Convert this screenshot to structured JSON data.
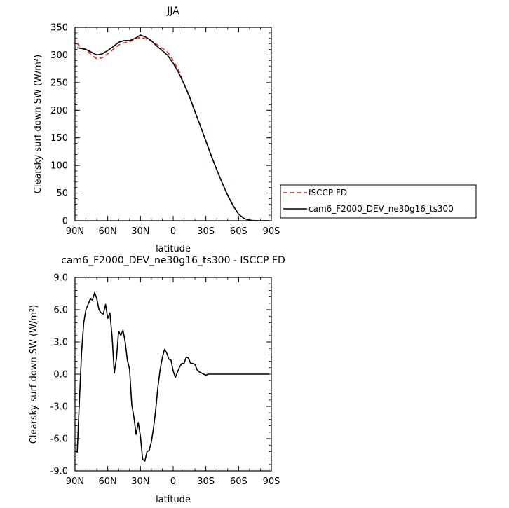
{
  "chart_data": [
    {
      "type": "line",
      "title": "JJA",
      "xlabel": "latitude",
      "ylabel": "Clearsky surf down SW (W/m²)",
      "xlim": [
        90,
        -90
      ],
      "ylim": [
        0,
        350
      ],
      "x_tick_labels": [
        "90N",
        "60N",
        "30N",
        "0",
        "30S",
        "60S",
        "90S"
      ],
      "y_tick_labels": [
        "0",
        "50",
        "100",
        "150",
        "200",
        "250",
        "300",
        "350"
      ],
      "legend_position": "right",
      "x": [
        88,
        85,
        80,
        75,
        70,
        65,
        60,
        55,
        50,
        45,
        40,
        35,
        30,
        25,
        20,
        15,
        10,
        5,
        0,
        -5,
        -10,
        -15,
        -20,
        -25,
        -30,
        -35,
        -40,
        -45,
        -50,
        -55,
        -60,
        -65,
        -70,
        -75,
        -80,
        -85,
        -88
      ],
      "series": [
        {
          "name": "ISCCP FD",
          "color": "#e8211d",
          "dash": true,
          "values": [
            321,
            314,
            310,
            300,
            293,
            295,
            302,
            310,
            318,
            322,
            324,
            328,
            332,
            329,
            325,
            319,
            312,
            305,
            290,
            272,
            248,
            225,
            198,
            172,
            145,
            118,
            92,
            68,
            46,
            27,
            12,
            4,
            1,
            0,
            0,
            0,
            0
          ]
        },
        {
          "name": "cam6_F2000_DEV_ne30g16_ts300",
          "color": "#000000",
          "dash": false,
          "values": [
            313,
            312,
            310,
            305,
            300,
            302,
            308,
            315,
            323,
            326,
            326,
            330,
            336,
            332,
            326,
            316,
            308,
            299,
            285,
            268,
            247,
            224,
            197,
            171,
            144,
            117,
            92,
            68,
            46,
            27,
            12,
            4,
            1,
            0,
            0,
            0,
            0
          ]
        }
      ]
    },
    {
      "type": "line",
      "title": "cam6_F2000_DEV_ne30g16_ts300 - ISCCP FD",
      "xlabel": "latitude",
      "ylabel": "Clearsky surf down SW (W/m²)",
      "xlim": [
        90,
        -90
      ],
      "ylim": [
        -9,
        9
      ],
      "x_tick_labels": [
        "90N",
        "60N",
        "30N",
        "0",
        "30S",
        "60S",
        "90S"
      ],
      "y_tick_labels": [
        "-9.0",
        "-6.0",
        "-3.0",
        "0.0",
        "3.0",
        "6.0",
        "9.0"
      ],
      "x": [
        88,
        86,
        84,
        82,
        80,
        78,
        76,
        74,
        72,
        70,
        68,
        66,
        64,
        62,
        60,
        58,
        56,
        54,
        52,
        50,
        48,
        46,
        44,
        42,
        40,
        38,
        36,
        34,
        32,
        30,
        28,
        26,
        24,
        22,
        20,
        18,
        16,
        14,
        12,
        10,
        8,
        6,
        4,
        2,
        0,
        -2,
        -4,
        -6,
        -8,
        -10,
        -12,
        -14,
        -16,
        -18,
        -20,
        -22,
        -24,
        -26,
        -28,
        -30,
        -32,
        -34,
        -36,
        -38,
        -40,
        -42,
        -44,
        -46,
        -48,
        -50,
        -52,
        -54,
        -56,
        -58,
        -60,
        -62,
        -64,
        -66,
        -68,
        -70,
        -72,
        -74,
        -76,
        -78,
        -80,
        -82,
        -84,
        -86,
        -88
      ],
      "series": [
        {
          "name": "",
          "color": "#000000",
          "values": [
            -7.3,
            -2.5,
            2.0,
            4.8,
            6.0,
            6.5,
            7.0,
            6.9,
            7.6,
            7.0,
            6.0,
            5.7,
            5.6,
            6.5,
            5.2,
            5.7,
            3.5,
            0.1,
            1.5,
            4.0,
            3.6,
            4.1,
            3.0,
            1.3,
            0.5,
            -2.8,
            -4.0,
            -5.6,
            -4.5,
            -5.8,
            -7.9,
            -8.1,
            -7.2,
            -7.1,
            -6.3,
            -5.0,
            -3.3,
            -1.2,
            0.4,
            1.5,
            2.3,
            2.0,
            1.4,
            1.3,
            0.3,
            -0.3,
            0.2,
            0.7,
            1.0,
            1.0,
            1.6,
            1.5,
            1.0,
            1.0,
            0.9,
            0.4,
            0.2,
            0.1,
            0.0,
            -0.1,
            0.0,
            0.0,
            0.0,
            0.0,
            0.0,
            0.0,
            0.0,
            0.0,
            0.0,
            0.0,
            0.0,
            0.0,
            0.0,
            0.0,
            0.0,
            0.0,
            0.0,
            0.0,
            0.0,
            0.0,
            0.0,
            0.0,
            0.0,
            0.0,
            0.0,
            0.0,
            0.0,
            0.0,
            0.0
          ]
        }
      ]
    }
  ]
}
